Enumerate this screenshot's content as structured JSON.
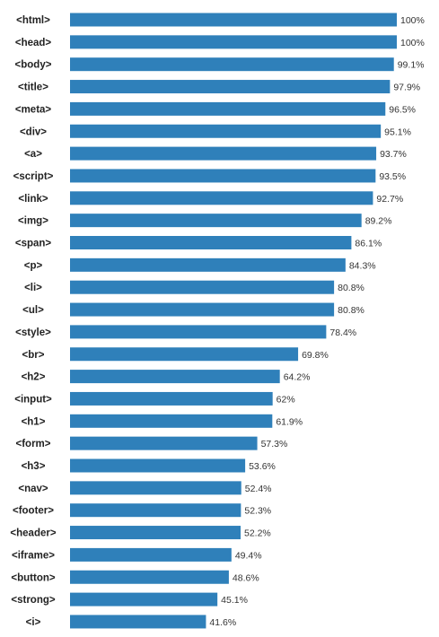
{
  "chart_data": {
    "type": "bar",
    "orientation": "horizontal",
    "categories": [
      "<html>",
      "<head>",
      "<body>",
      "<title>",
      "<meta>",
      "<div>",
      "<a>",
      "<script>",
      "<link>",
      "<img>",
      "<span>",
      "<p>",
      "<li>",
      "<ul>",
      "<style>",
      "<br>",
      "<h2>",
      "<input>",
      "<h1>",
      "<form>",
      "<h3>",
      "<nav>",
      "<footer>",
      "<header>",
      "<iframe>",
      "<button>",
      "<strong>",
      "<i>"
    ],
    "values": [
      100,
      100,
      99.1,
      97.9,
      96.5,
      95.1,
      93.7,
      93.5,
      92.7,
      89.2,
      86.1,
      84.3,
      80.8,
      80.8,
      78.4,
      69.8,
      64.2,
      62,
      61.9,
      57.3,
      53.6,
      52.4,
      52.3,
      52.2,
      49.4,
      48.6,
      45.1,
      41.6
    ],
    "value_labels": [
      "100%",
      "100%",
      "99.1%",
      "97.9%",
      "96.5%",
      "95.1%",
      "93.7%",
      "93.5%",
      "92.7%",
      "89.2%",
      "86.1%",
      "84.3%",
      "80.8%",
      "80.8%",
      "78.4%",
      "69.8%",
      "64.2%",
      "62%",
      "61.9%",
      "57.3%",
      "53.6%",
      "52.4%",
      "52.3%",
      "52.2%",
      "49.4%",
      "48.6%",
      "45.1%",
      "41.6%"
    ],
    "xlim": [
      0,
      100
    ],
    "grid": false,
    "legend": "none",
    "bar_color": "#2f80ba"
  }
}
